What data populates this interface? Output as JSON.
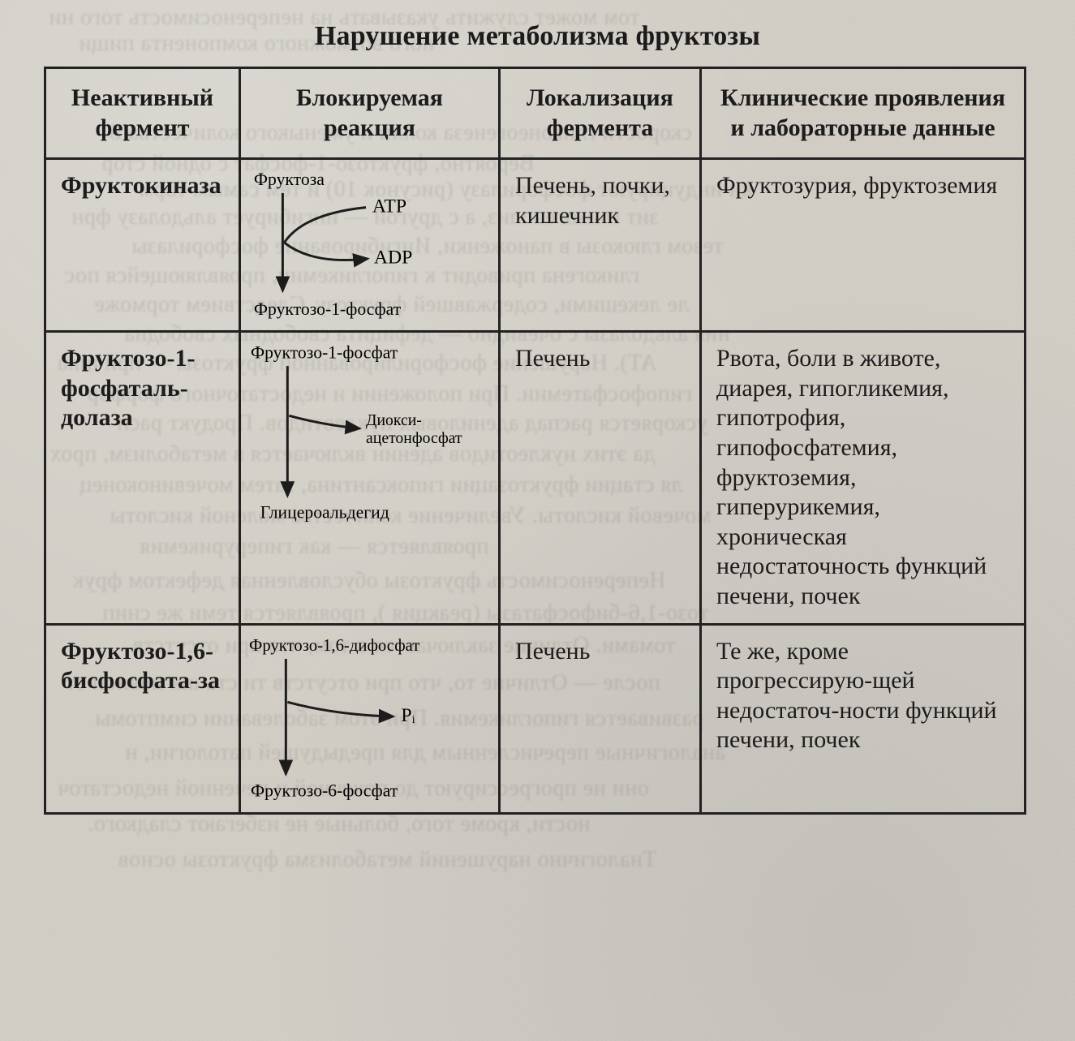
{
  "title": "Нарушение метаболизма фруктозы",
  "headers": {
    "col1": "Неактивный фермент",
    "col2": "Блокируемая реакция",
    "col3": "Локализация фермента",
    "col4": "Клинические проявления и лабораторные данные"
  },
  "rows": [
    {
      "enzyme": "Фруктокиназа",
      "localization": "Печень, почки, кишечник",
      "clinical": "Фруктозурия, фруктоземия",
      "reaction": {
        "substrate": "Фруктоза",
        "product": "Фруктозо-1-фосфат",
        "side_in": "ATP",
        "side_out": "ADP"
      }
    },
    {
      "enzyme": "Фруктозо-1-фосфаталь-долаза",
      "localization": "Печень",
      "clinical": "Рвота, боли в животе, диарея, гипогликемия, гипотрофия, гипофосфатемия, фруктоземия, гиперурикемия, хроническая недостаточность функций печени, почек",
      "reaction": {
        "substrate": "Фруктозо-1-фосфат",
        "product": "Глицероальдегид",
        "branch": "Диокси-\nацетонфосфат"
      }
    },
    {
      "enzyme": "Фруктозо-1,6-бисфосфата-за",
      "localization": "Печень",
      "clinical": "Те же, кроме прогрессирую-щей недостаточ-ности функций печени, почек",
      "reaction": {
        "substrate": "Фруктозо-1,6-дифосфат",
        "product": "Фруктозо-6-фосфат",
        "branch": "Pᵢ"
      }
    }
  ],
  "bleed_lines": [
    "том может служить указывать на непереносимость того ни",
    "ного возможного компонента пищи",
    "скорости гликонеогенеза колли и уженыкого количества Б",
    "ки индуцируют фосфорилазу (рисунок 10) и тем самым торм",
    "зит гликогенолиз, а с другой — ингибирует альдолазу фрн",
    "Вероятно, фруктозо-1-фосфат с одной стор",
    "тезом глюкозы в паноженки, Ингибирование фосфорилазы",
    "гликогена приводит к гипогликемии, проявляющейся пос",
    "ле лекешими, содержавшей фруктозу. Следствием торможе",
    "ния альдолазы с очевидно — дефицита свободных свободна",
    "АТ). Нарушение фосфорилированной фруктозы — причина",
    "гипофосфатемии. При положении и недостаточного форфор",
    "ускоряется распад адениловых нуклеотидов. Продукт расп",
    "да этих нуклеотидов аденин включается в метаболизм, прох",
    "ля стации фруктозации гипоксантина, затем мочевиноконец",
    "мочевой кислоты. Увеличение количества моленой кислоты",
    "проявляется — как гиперурикемия",
    "Непереносимость фруктозы обусловленная дефектом фрук",
    "тозо-1,6-бифосфатазы (реакция ), проявляется теми же снип",
    "томами. Отличие заключается в том, что при отсутств",
    "после — Отличие то, что при отсутств ти сть шк иовноп ст",
    "развивается гипогликемия. При этом заболевании симптомы",
    "аналогичные перечисленным для предыдущей патологии, н",
    "они не прогрессируют до почечной и печенной недостаточ",
    "ности, кроме того, больные не избегают сладкого.",
    "Тналогично нарушений метаболизма фруктозы основ"
  ],
  "colors": {
    "ink": "#1c1c1c",
    "border": "#222222",
    "paper": "#d0ccc5"
  }
}
